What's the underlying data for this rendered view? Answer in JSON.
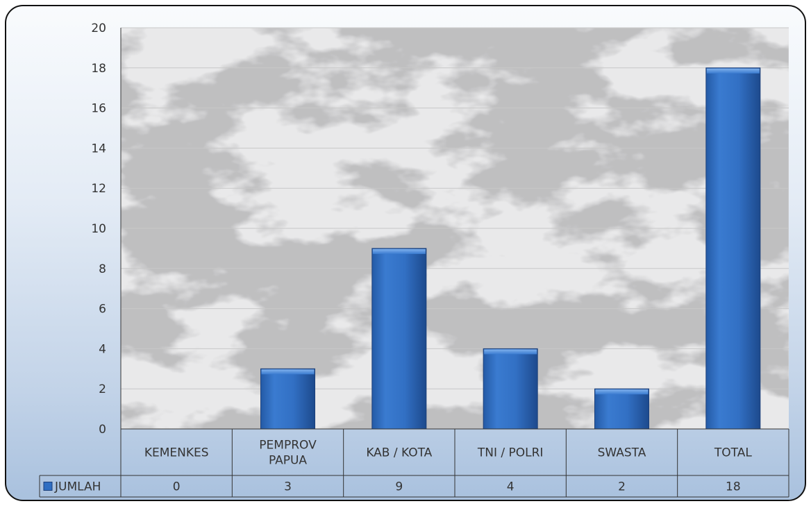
{
  "chart_data": {
    "type": "bar",
    "categories": [
      [
        "KEMENKES"
      ],
      [
        "PEMPROV",
        "PAPUA"
      ],
      [
        "KAB / KOTA"
      ],
      [
        "TNI / POLRI"
      ],
      [
        "SWASTA"
      ],
      [
        "TOTAL"
      ]
    ],
    "series": [
      {
        "name": "JUMLAH",
        "values": [
          0,
          3,
          9,
          4,
          2,
          18
        ]
      }
    ],
    "ylim": [
      0,
      20
    ],
    "yticks": [
      0,
      2,
      4,
      6,
      8,
      10,
      12,
      14,
      16,
      18,
      20
    ],
    "grid": true,
    "data_table": true,
    "colors": {
      "bar": "#2f6ec2",
      "bar_dark": "#1e4f96",
      "bar_light": "#5c97df",
      "grid": "#c8c8c8",
      "plot_bg": "#e9e9ea",
      "marble_vein": "#8a8a8a"
    }
  }
}
